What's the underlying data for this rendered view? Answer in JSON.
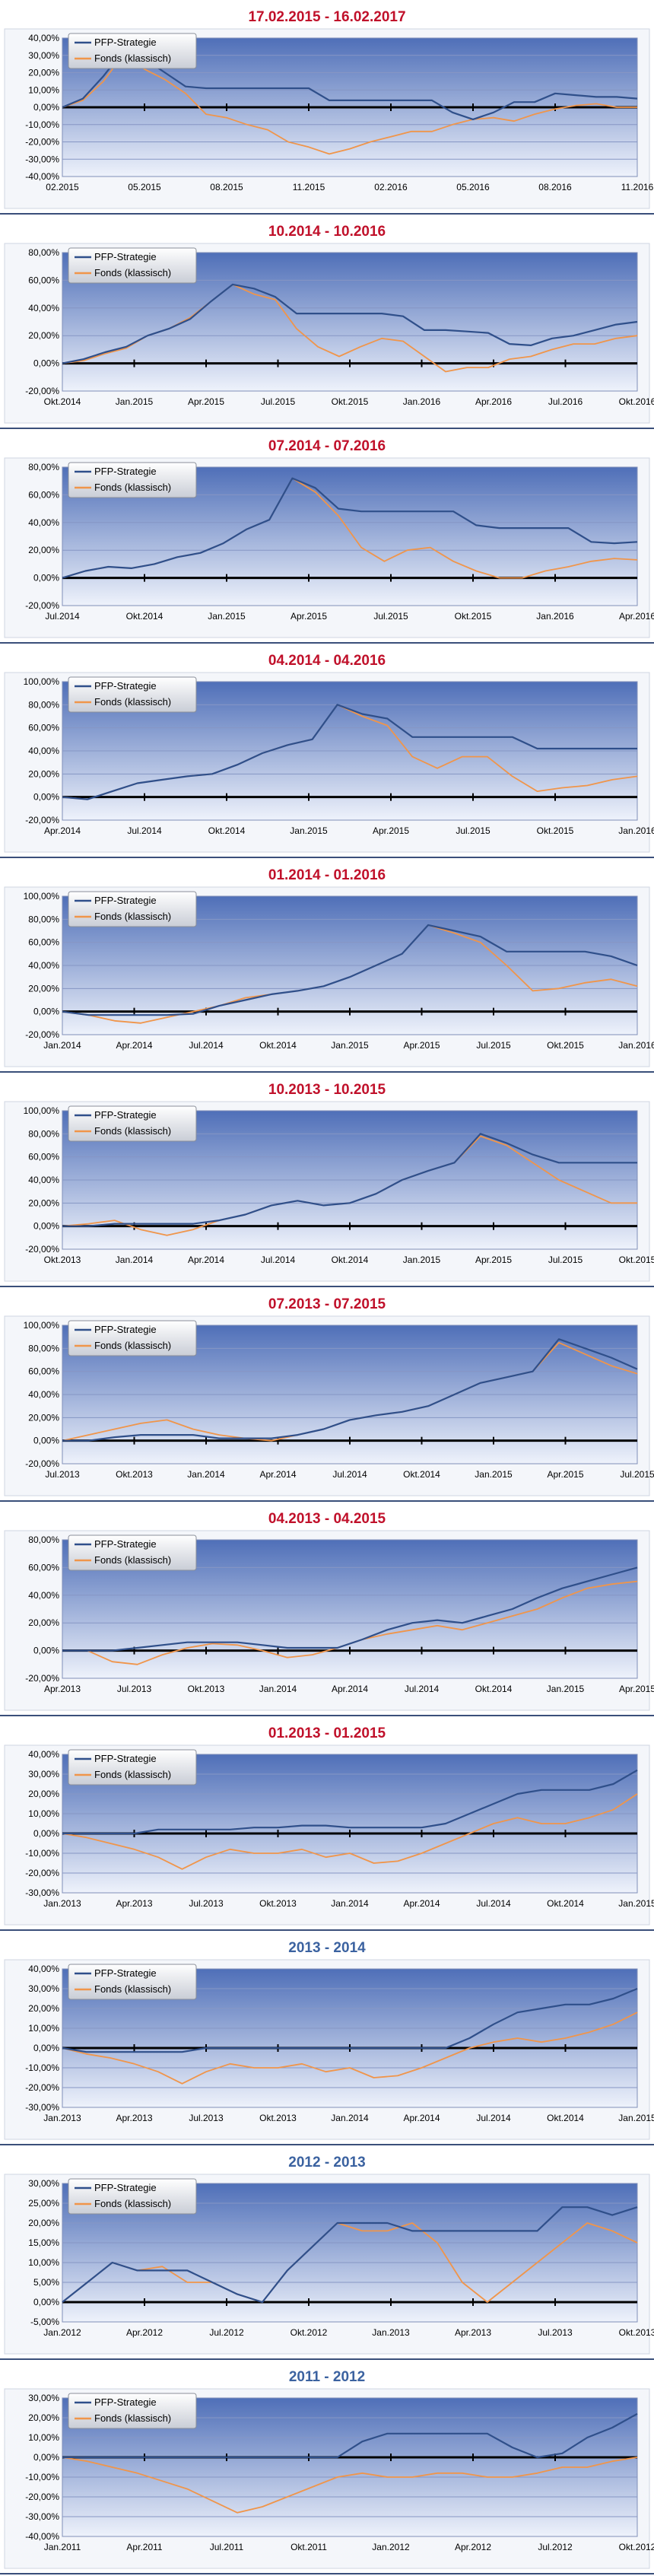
{
  "colors": {
    "strategy": "#2f4f8a",
    "fund": "#f0954a",
    "plot_top": "#4f6fb8",
    "plot_bottom": "#eef2fb",
    "title_red": "#c0102a",
    "title_blue": "#3b62a0"
  },
  "legend_labels": [
    "PFP-Strategie",
    "Fonds (klassisch)"
  ],
  "chart_data": [
    {
      "type": "line",
      "title": "17.02.2015 - 16.02.2017",
      "title_color": "red",
      "yticks": [
        "40,00%",
        "30,00%",
        "20,00%",
        "10,00%",
        "0,00%",
        "-10,00%",
        "-20,00%",
        "-30,00%",
        "-40,00%"
      ],
      "ylim": [
        -40,
        40
      ],
      "xticks": [
        "02.2015",
        "05.2015",
        "08.2015",
        "11.2015",
        "02.2016",
        "05.2016",
        "08.2016",
        "11.2016"
      ],
      "series": [
        {
          "name": "PFP-Strategie",
          "values": [
            0,
            5,
            18,
            33,
            28,
            20,
            12,
            11,
            11,
            11,
            11,
            11,
            11,
            4,
            4,
            4,
            4,
            4,
            4,
            -3,
            -7,
            -3,
            3,
            3,
            8,
            7,
            6,
            6,
            5
          ]
        },
        {
          "name": "Fonds (klassisch)",
          "values": [
            0,
            4,
            15,
            31,
            22,
            16,
            8,
            -4,
            -6,
            -10,
            -13,
            -20,
            -23,
            -27,
            -24,
            -20,
            -17,
            -14,
            -14,
            -10,
            -7,
            -6,
            -8,
            -4,
            -1,
            1,
            2,
            0,
            0
          ]
        }
      ]
    },
    {
      "type": "line",
      "title": "10.2014 - 10.2016",
      "title_color": "red",
      "yticks": [
        "80,00%",
        "60,00%",
        "40,00%",
        "20,00%",
        "0,00%",
        "-20,00%"
      ],
      "ylim": [
        -20,
        80
      ],
      "xticks": [
        "Okt.2014",
        "Jan.2015",
        "Apr.2015",
        "Jul.2015",
        "Okt.2015",
        "Jan.2016",
        "Apr.2016",
        "Jul.2016",
        "Okt.2016"
      ],
      "series": [
        {
          "name": "PFP-Strategie",
          "values": [
            0,
            3,
            8,
            12,
            20,
            25,
            32,
            45,
            57,
            54,
            48,
            36,
            36,
            36,
            36,
            36,
            34,
            24,
            24,
            23,
            22,
            14,
            13,
            18,
            20,
            24,
            28,
            30
          ]
        },
        {
          "name": "Fonds (klassisch)",
          "values": [
            0,
            2,
            7,
            11,
            20,
            25,
            33,
            45,
            57,
            50,
            46,
            25,
            12,
            5,
            12,
            18,
            16,
            5,
            -6,
            -3,
            -3,
            3,
            5,
            10,
            14,
            14,
            18,
            20
          ]
        }
      ]
    },
    {
      "type": "line",
      "title": "07.2014 - 07.2016",
      "title_color": "red",
      "yticks": [
        "80,00%",
        "60,00%",
        "40,00%",
        "20,00%",
        "0,00%",
        "-20,00%"
      ],
      "ylim": [
        -20,
        80
      ],
      "xticks": [
        "Jul.2014",
        "Okt.2014",
        "Jan.2015",
        "Apr.2015",
        "Jul.2015",
        "Okt.2015",
        "Jan.2016",
        "Apr.2016"
      ],
      "series": [
        {
          "name": "PFP-Strategie",
          "values": [
            0,
            5,
            8,
            7,
            10,
            15,
            18,
            25,
            35,
            42,
            72,
            65,
            50,
            48,
            48,
            48,
            48,
            48,
            38,
            36,
            36,
            36,
            36,
            26,
            25,
            26
          ]
        },
        {
          "name": "Fonds (klassisch)",
          "values": [
            0,
            5,
            8,
            7,
            10,
            15,
            18,
            25,
            35,
            42,
            72,
            62,
            45,
            22,
            12,
            20,
            22,
            12,
            5,
            0,
            0,
            5,
            8,
            12,
            14,
            13
          ]
        }
      ]
    },
    {
      "type": "line",
      "title": "04.2014 - 04.2016",
      "title_color": "red",
      "yticks": [
        "100,00%",
        "80,00%",
        "60,00%",
        "40,00%",
        "20,00%",
        "0,00%",
        "-20,00%"
      ],
      "ylim": [
        -20,
        100
      ],
      "xticks": [
        "Apr.2014",
        "Jul.2014",
        "Okt.2014",
        "Jan.2015",
        "Apr.2015",
        "Jul.2015",
        "Okt.2015",
        "Jan.2016"
      ],
      "series": [
        {
          "name": "PFP-Strategie",
          "values": [
            0,
            -2,
            5,
            12,
            15,
            18,
            20,
            28,
            38,
            45,
            50,
            80,
            72,
            68,
            52,
            52,
            52,
            52,
            52,
            42,
            42,
            42,
            42,
            42
          ]
        },
        {
          "name": "Fonds (klassisch)",
          "values": [
            0,
            -2,
            5,
            12,
            15,
            18,
            20,
            28,
            38,
            45,
            50,
            80,
            70,
            62,
            35,
            25,
            35,
            35,
            18,
            5,
            8,
            10,
            15,
            18
          ]
        }
      ]
    },
    {
      "type": "line",
      "title": "01.2014 - 01.2016",
      "title_color": "red",
      "yticks": [
        "100,00%",
        "80,00%",
        "60,00%",
        "40,00%",
        "20,00%",
        "0,00%",
        "-20,00%"
      ],
      "ylim": [
        -20,
        100
      ],
      "xticks": [
        "Jan.2014",
        "Apr.2014",
        "Jul.2014",
        "Okt.2014",
        "Jan.2015",
        "Apr.2015",
        "Jul.2015",
        "Okt.2015",
        "Jan.2016"
      ],
      "series": [
        {
          "name": "PFP-Strategie",
          "values": [
            0,
            -3,
            -3,
            -3,
            -3,
            -2,
            5,
            10,
            15,
            18,
            22,
            30,
            40,
            50,
            75,
            70,
            65,
            52,
            52,
            52,
            52,
            48,
            40
          ]
        },
        {
          "name": "Fonds (klassisch)",
          "values": [
            0,
            -3,
            -8,
            -10,
            -5,
            0,
            5,
            12,
            15,
            18,
            22,
            30,
            40,
            50,
            75,
            68,
            60,
            40,
            18,
            20,
            25,
            28,
            22
          ]
        }
      ]
    },
    {
      "type": "line",
      "title": "10.2013 - 10.2015",
      "title_color": "red",
      "yticks": [
        "100,00%",
        "80,00%",
        "60,00%",
        "40,00%",
        "20,00%",
        "0,00%",
        "-20,00%"
      ],
      "ylim": [
        -20,
        100
      ],
      "xticks": [
        "Okt.2013",
        "Jan.2014",
        "Apr.2014",
        "Jul.2014",
        "Okt.2014",
        "Jan.2015",
        "Apr.2015",
        "Jul.2015",
        "Okt.2015"
      ],
      "series": [
        {
          "name": "PFP-Strategie",
          "values": [
            0,
            0,
            2,
            2,
            2,
            2,
            5,
            10,
            18,
            22,
            18,
            20,
            28,
            40,
            48,
            55,
            80,
            72,
            62,
            55,
            55,
            55,
            55
          ]
        },
        {
          "name": "Fonds (klassisch)",
          "values": [
            0,
            2,
            5,
            -3,
            -8,
            -3,
            5,
            10,
            18,
            22,
            18,
            20,
            28,
            40,
            48,
            55,
            78,
            70,
            55,
            40,
            30,
            20,
            20
          ]
        }
      ]
    },
    {
      "type": "line",
      "title": "07.2013 - 07.2015",
      "title_color": "red",
      "yticks": [
        "100,00%",
        "80,00%",
        "60,00%",
        "40,00%",
        "20,00%",
        "0,00%",
        "-20,00%"
      ],
      "ylim": [
        -20,
        100
      ],
      "xticks": [
        "Jul.2013",
        "Okt.2013",
        "Jan.2014",
        "Apr.2014",
        "Jul.2014",
        "Okt.2014",
        "Jan.2015",
        "Apr.2015",
        "Jul.2015"
      ],
      "series": [
        {
          "name": "PFP-Strategie",
          "values": [
            0,
            0,
            3,
            5,
            5,
            5,
            2,
            2,
            2,
            5,
            10,
            18,
            22,
            25,
            30,
            40,
            50,
            55,
            60,
            88,
            80,
            72,
            62
          ]
        },
        {
          "name": "Fonds (klassisch)",
          "values": [
            0,
            5,
            10,
            15,
            18,
            10,
            5,
            2,
            0,
            5,
            10,
            18,
            22,
            25,
            30,
            40,
            50,
            55,
            60,
            85,
            75,
            65,
            58
          ]
        }
      ]
    },
    {
      "type": "line",
      "title": "04.2013 - 04.2015",
      "title_color": "red",
      "yticks": [
        "80,00%",
        "60,00%",
        "40,00%",
        "20,00%",
        "0,00%",
        "-20,00%"
      ],
      "ylim": [
        -20,
        80
      ],
      "xticks": [
        "Apr.2013",
        "Jul.2013",
        "Okt.2013",
        "Jan.2014",
        "Apr.2014",
        "Jul.2014",
        "Okt.2014",
        "Jan.2015",
        "Apr.2015"
      ],
      "series": [
        {
          "name": "PFP-Strategie",
          "values": [
            0,
            0,
            0,
            2,
            4,
            6,
            6,
            6,
            4,
            2,
            2,
            2,
            8,
            15,
            20,
            22,
            20,
            25,
            30,
            38,
            45,
            50,
            55,
            60
          ]
        },
        {
          "name": "Fonds (klassisch)",
          "values": [
            0,
            0,
            -8,
            -10,
            -3,
            2,
            5,
            4,
            0,
            -5,
            -3,
            2,
            8,
            12,
            15,
            18,
            15,
            20,
            25,
            30,
            38,
            45,
            48,
            50
          ]
        }
      ]
    },
    {
      "type": "line",
      "title": "01.2013 - 01.2015",
      "title_color": "red",
      "yticks": [
        "40,00%",
        "30,00%",
        "20,00%",
        "10,00%",
        "0,00%",
        "-10,00%",
        "-20,00%",
        "-30,00%"
      ],
      "ylim": [
        -30,
        40
      ],
      "xticks": [
        "Jan.2013",
        "Apr.2013",
        "Jul.2013",
        "Okt.2013",
        "Jan.2014",
        "Apr.2014",
        "Jul.2014",
        "Okt.2014",
        "Jan.2015"
      ],
      "series": [
        {
          "name": "PFP-Strategie",
          "values": [
            0,
            0,
            0,
            0,
            2,
            2,
            2,
            2,
            3,
            3,
            4,
            4,
            3,
            3,
            3,
            3,
            5,
            10,
            15,
            20,
            22,
            22,
            22,
            25,
            32
          ]
        },
        {
          "name": "Fonds (klassisch)",
          "values": [
            0,
            -2,
            -5,
            -8,
            -12,
            -18,
            -12,
            -8,
            -10,
            -10,
            -8,
            -12,
            -10,
            -15,
            -14,
            -10,
            -5,
            0,
            5,
            8,
            5,
            5,
            8,
            12,
            20
          ]
        }
      ]
    },
    {
      "type": "line",
      "title": "2013 - 2014",
      "title_color": "blue",
      "yticks": [
        "40,00%",
        "30,00%",
        "20,00%",
        "10,00%",
        "0,00%",
        "-10,00%",
        "-20,00%",
        "-30,00%"
      ],
      "ylim": [
        -30,
        40
      ],
      "xticks": [
        "Jan.2013",
        "Apr.2013",
        "Jul.2013",
        "Okt.2013",
        "Jan.2014",
        "Apr.2014",
        "Jul.2014",
        "Okt.2014",
        "Jan.2015"
      ],
      "series": [
        {
          "name": "PFP-Strategie",
          "values": [
            0,
            -2,
            -2,
            -2,
            -2,
            -2,
            0,
            0,
            0,
            0,
            0,
            0,
            0,
            0,
            0,
            0,
            0,
            5,
            12,
            18,
            20,
            22,
            22,
            25,
            30
          ]
        },
        {
          "name": "Fonds (klassisch)",
          "values": [
            0,
            -3,
            -5,
            -8,
            -12,
            -18,
            -12,
            -8,
            -10,
            -10,
            -8,
            -12,
            -10,
            -15,
            -14,
            -10,
            -5,
            0,
            3,
            5,
            3,
            5,
            8,
            12,
            18
          ]
        }
      ]
    },
    {
      "type": "line",
      "title": "2012 - 2013",
      "title_color": "blue",
      "yticks": [
        "30,00%",
        "25,00%",
        "20,00%",
        "15,00%",
        "10,00%",
        "5,00%",
        "0,00%",
        "-5,00%"
      ],
      "ylim": [
        -5,
        30
      ],
      "xticks": [
        "Jan.2012",
        "Apr.2012",
        "Jul.2012",
        "Okt.2012",
        "Jan.2013",
        "Apr.2013",
        "Jul.2013",
        "Okt.2013"
      ],
      "series": [
        {
          "name": "PFP-Strategie",
          "values": [
            0,
            5,
            10,
            8,
            8,
            8,
            5,
            2,
            0,
            8,
            14,
            20,
            20,
            20,
            18,
            18,
            18,
            18,
            18,
            18,
            24,
            24,
            22,
            24
          ]
        },
        {
          "name": "Fonds (klassisch)",
          "values": [
            0,
            5,
            10,
            8,
            9,
            5,
            5,
            2,
            0,
            8,
            14,
            20,
            18,
            18,
            20,
            15,
            5,
            0,
            5,
            10,
            15,
            20,
            18,
            15
          ]
        }
      ]
    },
    {
      "type": "line",
      "title": "2011 - 2012",
      "title_color": "blue",
      "yticks": [
        "30,00%",
        "20,00%",
        "10,00%",
        "0,00%",
        "-10,00%",
        "-20,00%",
        "-30,00%",
        "-40,00%"
      ],
      "ylim": [
        -40,
        30
      ],
      "xticks": [
        "Jan.2011",
        "Apr.2011",
        "Jul.2011",
        "Okt.2011",
        "Jan.2012",
        "Apr.2012",
        "Jul.2012",
        "Okt.2012"
      ],
      "series": [
        {
          "name": "PFP-Strategie",
          "values": [
            0,
            0,
            0,
            0,
            0,
            0,
            0,
            0,
            0,
            0,
            0,
            0,
            8,
            12,
            12,
            12,
            12,
            12,
            5,
            0,
            2,
            10,
            15,
            22
          ]
        },
        {
          "name": "Fonds (klassisch)",
          "values": [
            0,
            -2,
            -5,
            -8,
            -12,
            -16,
            -22,
            -28,
            -25,
            -20,
            -15,
            -10,
            -8,
            -10,
            -10,
            -8,
            -8,
            -10,
            -10,
            -8,
            -5,
            -5,
            -2,
            0
          ]
        }
      ]
    }
  ]
}
